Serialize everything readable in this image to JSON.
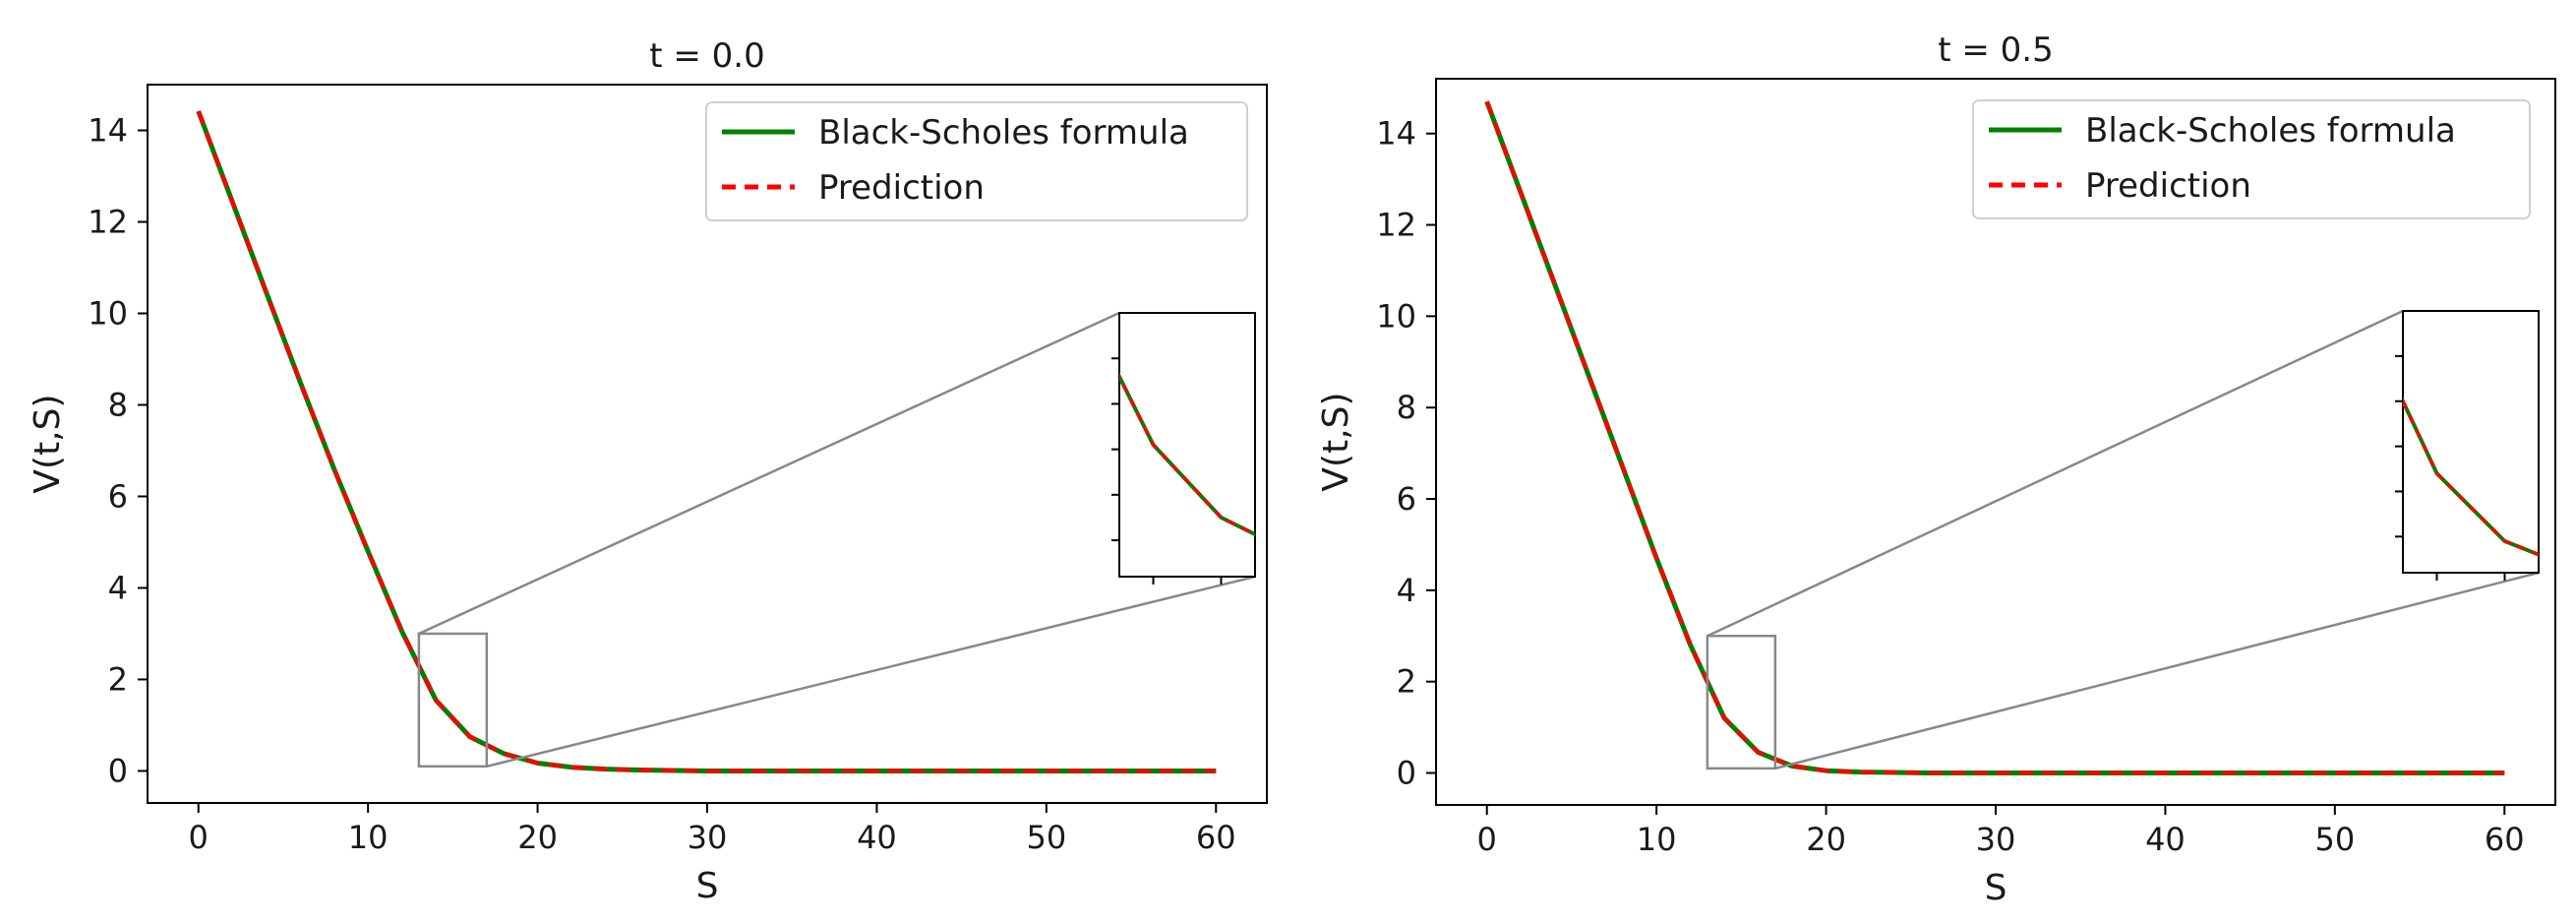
{
  "chart_data": [
    {
      "type": "line",
      "title": "t = 0.0",
      "xlabel": "S",
      "ylabel": "V(t,S)",
      "xlim": [
        -3,
        63
      ],
      "ylim": [
        -0.7,
        15.0
      ],
      "xticks": [
        0,
        10,
        20,
        30,
        40,
        50,
        60
      ],
      "yticks": [
        0,
        2,
        4,
        6,
        8,
        10,
        12,
        14
      ],
      "legend_position": "top-right",
      "series": [
        {
          "name": "Black-Scholes formula",
          "color": "#008000",
          "style": "solid",
          "x": [
            0,
            2,
            4,
            6,
            8,
            10,
            12,
            14,
            16,
            18,
            20,
            22,
            24,
            26,
            28,
            30,
            35,
            40,
            45,
            50,
            55,
            60
          ],
          "y": [
            14.42,
            12.44,
            10.46,
            8.5,
            6.6,
            4.8,
            3.05,
            1.55,
            0.75,
            0.38,
            0.17,
            0.08,
            0.04,
            0.02,
            0.01,
            0.0,
            0.0,
            0.0,
            0.0,
            0.0,
            0.0,
            0.0
          ]
        },
        {
          "name": "Prediction",
          "color": "#ff0000",
          "style": "dashed",
          "x": [
            0,
            2,
            4,
            6,
            8,
            10,
            12,
            14,
            16,
            18,
            20,
            22,
            24,
            26,
            28,
            30,
            35,
            40,
            45,
            50,
            55,
            60
          ],
          "y": [
            14.42,
            12.44,
            10.46,
            8.5,
            6.6,
            4.8,
            3.05,
            1.55,
            0.75,
            0.38,
            0.17,
            0.08,
            0.04,
            0.02,
            0.01,
            0.0,
            0.0,
            0.0,
            0.0,
            0.0,
            0.0,
            0.0
          ]
        }
      ],
      "zoom_region": {
        "xlim": [
          13,
          17
        ],
        "ylim": [
          0.1,
          3.0
        ]
      }
    },
    {
      "type": "line",
      "title": "t = 0.5",
      "xlabel": "S",
      "ylabel": "V(t,S)",
      "xlim": [
        -3,
        63
      ],
      "ylim": [
        -0.7,
        15.2
      ],
      "xticks": [
        0,
        10,
        20,
        30,
        40,
        50,
        60
      ],
      "yticks": [
        0,
        2,
        4,
        6,
        8,
        10,
        12,
        14
      ],
      "legend_position": "top-right",
      "series": [
        {
          "name": "Black-Scholes formula",
          "color": "#008000",
          "style": "solid",
          "x": [
            0,
            2,
            4,
            6,
            8,
            10,
            12,
            14,
            16,
            18,
            20,
            22,
            24,
            26,
            28,
            30,
            35,
            40,
            45,
            50,
            55,
            60
          ],
          "y": [
            14.7,
            12.7,
            10.7,
            8.7,
            6.7,
            4.7,
            2.8,
            1.2,
            0.45,
            0.15,
            0.05,
            0.02,
            0.01,
            0.0,
            0.0,
            0.0,
            0.0,
            0.0,
            0.0,
            0.0,
            0.0,
            0.0
          ]
        },
        {
          "name": "Prediction",
          "color": "#ff0000",
          "style": "dashed",
          "x": [
            0,
            2,
            4,
            6,
            8,
            10,
            12,
            14,
            16,
            18,
            20,
            22,
            24,
            26,
            28,
            30,
            35,
            40,
            45,
            50,
            55,
            60
          ],
          "y": [
            14.7,
            12.7,
            10.7,
            8.7,
            6.7,
            4.7,
            2.8,
            1.2,
            0.45,
            0.15,
            0.05,
            0.02,
            0.01,
            0.0,
            0.0,
            0.0,
            0.0,
            0.0,
            0.0,
            0.0,
            0.0,
            0.0
          ]
        }
      ],
      "zoom_region": {
        "xlim": [
          13,
          17
        ],
        "ylim": [
          0.1,
          3.0
        ]
      }
    }
  ]
}
